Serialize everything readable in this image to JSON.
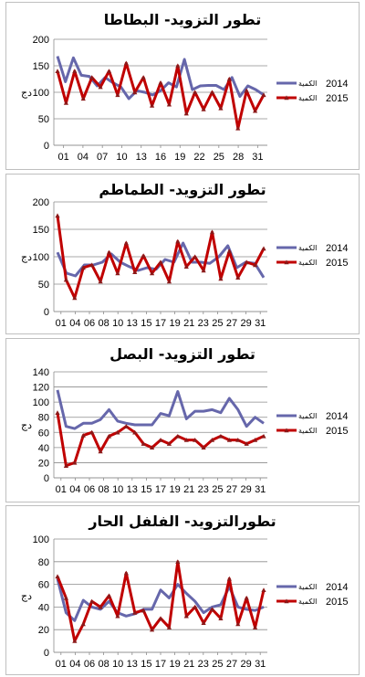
{
  "chart_data": [
    {
      "type": "line",
      "title": "تطور التزويد- البطاطا",
      "ylabel": "دج",
      "ylim": [
        0,
        200
      ],
      "yticks": [
        0,
        50,
        100,
        150,
        200
      ],
      "x_tick_labels": [
        "01",
        "04",
        "07",
        "10",
        "13",
        "16",
        "19",
        "22",
        "25",
        "28",
        "31"
      ],
      "legend_position": "right",
      "series": [
        {
          "name": "2014",
          "legend_prefix": "الكمية",
          "color": "#6667AB",
          "values": [
            168,
            120,
            165,
            132,
            130,
            112,
            128,
            118,
            110,
            88,
            103,
            100,
            95,
            103,
            118,
            110,
            162,
            105,
            112,
            113,
            113,
            105,
            128,
            92,
            112,
            105,
            95
          ]
        },
        {
          "name": "2015",
          "legend_prefix": "الكمية",
          "color": "#C00000",
          "values": [
            140,
            80,
            140,
            88,
            128,
            110,
            140,
            95,
            155,
            100,
            128,
            75,
            118,
            77,
            150,
            60,
            100,
            68,
            100,
            70,
            125,
            32,
            103,
            65,
            95
          ]
        }
      ]
    },
    {
      "type": "line",
      "title": "تطور التزويد- الطماطم",
      "ylabel": "دج",
      "ylim": [
        0,
        200
      ],
      "yticks": [
        0,
        50,
        100,
        150,
        200
      ],
      "x_tick_labels": [
        "01",
        "04",
        "06",
        "08",
        "10",
        "13",
        "15",
        "17",
        "19",
        "21",
        "23",
        "25",
        "27",
        "29",
        "31"
      ],
      "legend_position": "right",
      "series": [
        {
          "name": "2014",
          "legend_prefix": "الكمية",
          "color": "#6667AB",
          "values": [
            108,
            70,
            65,
            85,
            85,
            90,
            105,
            90,
            82,
            75,
            80,
            77,
            95,
            90,
            125,
            90,
            90,
            88,
            100,
            120,
            80,
            90,
            88,
            62
          ]
        },
        {
          "name": "2015",
          "legend_prefix": "الكمية",
          "color": "#C00000",
          "values": [
            175,
            58,
            25,
            80,
            85,
            55,
            108,
            70,
            125,
            72,
            102,
            70,
            90,
            55,
            128,
            82,
            100,
            75,
            145,
            60,
            110,
            62,
            90,
            85,
            115
          ]
        }
      ]
    },
    {
      "type": "line",
      "title": "تطور التزويد- البصل",
      "ylabel": "دج",
      "ylim": [
        0,
        140
      ],
      "yticks": [
        0,
        20,
        40,
        60,
        80,
        100,
        120,
        140
      ],
      "x_tick_labels": [
        "01",
        "04",
        "06",
        "08",
        "10",
        "13",
        "15",
        "17",
        "19",
        "21",
        "23",
        "25",
        "27",
        "29",
        "31"
      ],
      "legend_position": "right",
      "series": [
        {
          "name": "2014",
          "legend_prefix": "الكمية",
          "color": "#6667AB",
          "values": [
            116,
            68,
            65,
            72,
            72,
            77,
            90,
            75,
            72,
            70,
            70,
            70,
            85,
            82,
            114,
            78,
            88,
            88,
            90,
            86,
            105,
            90,
            68,
            80,
            72
          ]
        },
        {
          "name": "2015",
          "legend_prefix": "الكمية",
          "color": "#C00000",
          "values": [
            86,
            16,
            20,
            56,
            60,
            35,
            55,
            60,
            68,
            60,
            45,
            40,
            50,
            45,
            55,
            50,
            50,
            40,
            50,
            55,
            50,
            50,
            45,
            50,
            55
          ]
        }
      ]
    },
    {
      "type": "line",
      "title": "تطورالتزويد- الفلفل الحار",
      "ylabel": "دج",
      "ylim": [
        0,
        100
      ],
      "yticks": [
        0,
        20,
        40,
        60,
        80,
        100
      ],
      "x_tick_labels": [
        "01",
        "04",
        "06",
        "08",
        "10",
        "13",
        "15",
        "17",
        "19",
        "21",
        "23",
        "25",
        "27",
        "29",
        "31"
      ],
      "legend_position": "right",
      "series": [
        {
          "name": "2014",
          "legend_prefix": "الكمية",
          "color": "#6667AB",
          "values": [
            65,
            35,
            28,
            46,
            40,
            38,
            45,
            35,
            32,
            34,
            38,
            38,
            55,
            48,
            60,
            52,
            45,
            35,
            40,
            42,
            58,
            40,
            38,
            37,
            40
          ]
        },
        {
          "name": "2015",
          "legend_prefix": "الكمية",
          "color": "#C00000",
          "values": [
            67,
            48,
            10,
            25,
            45,
            40,
            50,
            32,
            70,
            35,
            37,
            20,
            30,
            22,
            80,
            32,
            40,
            26,
            38,
            30,
            65,
            25,
            48,
            22,
            55
          ]
        }
      ]
    }
  ]
}
